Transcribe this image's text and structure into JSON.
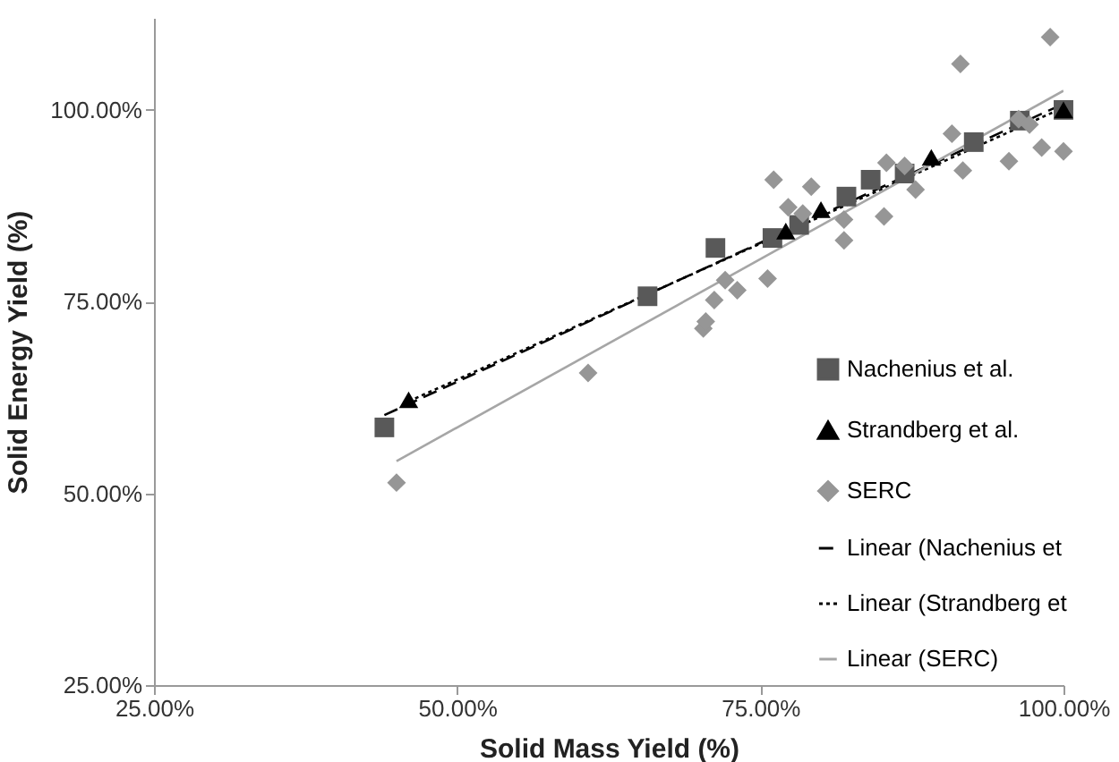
{
  "chart_data": {
    "type": "scatter",
    "xlabel": "Solid Mass Yield (%)",
    "ylabel": "Solid Energy Yield (%)",
    "xlim": [
      25,
      100
    ],
    "ylim": [
      25,
      112
    ],
    "xticks": [
      {
        "value": 25,
        "label": "25.00%"
      },
      {
        "value": 50,
        "label": "50.00%"
      },
      {
        "value": 75,
        "label": "75.00%"
      },
      {
        "value": 100,
        "label": "100.00%"
      }
    ],
    "yticks": [
      {
        "value": 25,
        "label": "25.00%"
      },
      {
        "value": 50,
        "label": "50.00%"
      },
      {
        "value": 75,
        "label": "75.00%"
      },
      {
        "value": 100,
        "label": "100.00%"
      }
    ],
    "grid": false,
    "legend": "right",
    "series": [
      {
        "name": "Nachenius et al.",
        "type": "scatter",
        "marker": "square",
        "color": "#595959",
        "x": [
          44.0,
          65.7,
          71.3,
          76.0,
          78.2,
          82.1,
          84.1,
          86.9,
          92.6,
          96.4,
          100
        ],
        "values": [
          58.6,
          75.7,
          82.0,
          83.3,
          85.0,
          88.7,
          90.9,
          91.7,
          95.8,
          98.6,
          100
        ]
      },
      {
        "name": "Strandberg et al.",
        "type": "scatter",
        "marker": "triangle",
        "color": "#000000",
        "x": [
          46.0,
          77.1,
          80.0,
          89.1,
          100
        ],
        "values": [
          62.2,
          84.2,
          87.0,
          93.8,
          100
        ]
      },
      {
        "name": "SERC",
        "type": "scatter",
        "marker": "diamond",
        "color": "#969696",
        "x": [
          45.0,
          60.8,
          70.3,
          70.5,
          71.2,
          72.1,
          73.1,
          75.6,
          76.1,
          79.2,
          77.3,
          78.5,
          81.9,
          81.9,
          85.2,
          85.4,
          86.9,
          87.8,
          90.8,
          91.5,
          91.7,
          95.5,
          96.3,
          97.2,
          98.2,
          98.9,
          100
        ],
        "values": [
          51.4,
          65.7,
          71.5,
          72.4,
          75.2,
          77.8,
          76.5,
          78.0,
          90.9,
          90.0,
          87.3,
          86.5,
          85.7,
          83.0,
          86.1,
          93.1,
          92.7,
          89.6,
          96.9,
          106.0,
          92.1,
          93.3,
          98.8,
          98.1,
          95.1,
          109.5,
          94.6
        ]
      },
      {
        "name": "Linear (Nachenius et",
        "type": "line",
        "line_style": "dashed",
        "color": "#000000",
        "x": [
          44,
          100
        ],
        "values": [
          60.2,
          100.8
        ]
      },
      {
        "name": "Linear (Strandberg et",
        "type": "line",
        "line_style": "dotted",
        "color": "#000000",
        "x": [
          46,
          100
        ],
        "values": [
          62.0,
          100.3
        ]
      },
      {
        "name": "Linear (SERC)",
        "type": "line",
        "line_style": "solid",
        "color": "#a6a6a6",
        "x": [
          45,
          100
        ],
        "values": [
          54.2,
          102.5
        ]
      }
    ]
  }
}
